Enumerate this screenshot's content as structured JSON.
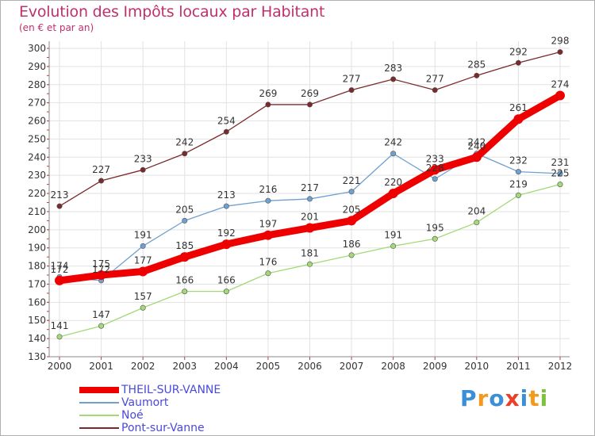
{
  "header": {
    "title": "Evolution des Impôts locaux par Habitant",
    "subtitle": "(en € et par an)"
  },
  "logo": {
    "text": "Proxiti",
    "colors": [
      "#3b8fd6",
      "#f39a1e",
      "#3b8fd6",
      "#e8402a",
      "#3b8fd6",
      "#f39a1e",
      "#7cc23a"
    ]
  },
  "chart_data": {
    "type": "line",
    "x": [
      "2000",
      "2001",
      "2002",
      "2003",
      "2004",
      "2005",
      "2006",
      "2007",
      "2008",
      "2009",
      "2010",
      "2011",
      "2012"
    ],
    "ylim": [
      130,
      300
    ],
    "yticks": [
      130,
      140,
      150,
      160,
      170,
      180,
      190,
      200,
      210,
      220,
      230,
      240,
      250,
      260,
      270,
      280,
      290,
      300
    ],
    "grid": true,
    "legend_position": "bottom-left",
    "series": [
      {
        "name": "Pont-sur-Vanne",
        "color": "#7a2a2a",
        "values": [
          213,
          227,
          233,
          242,
          254,
          269,
          269,
          277,
          283,
          277,
          285,
          292,
          298
        ]
      },
      {
        "name": "Vaumort",
        "color": "#6fa0cf",
        "values": [
          174,
          172,
          191,
          205,
          213,
          216,
          217,
          221,
          242,
          228,
          242,
          232,
          231
        ]
      },
      {
        "name": "Noé",
        "color": "#a3d977",
        "values": [
          141,
          147,
          157,
          166,
          166,
          176,
          181,
          186,
          191,
          195,
          204,
          219,
          225
        ]
      },
      {
        "name": "THEIL-SUR-VANNE",
        "color": "#ee0000",
        "values": [
          172,
          175,
          177,
          185,
          192,
          197,
          201,
          205,
          220,
          233,
          240,
          261,
          274
        ]
      }
    ]
  }
}
